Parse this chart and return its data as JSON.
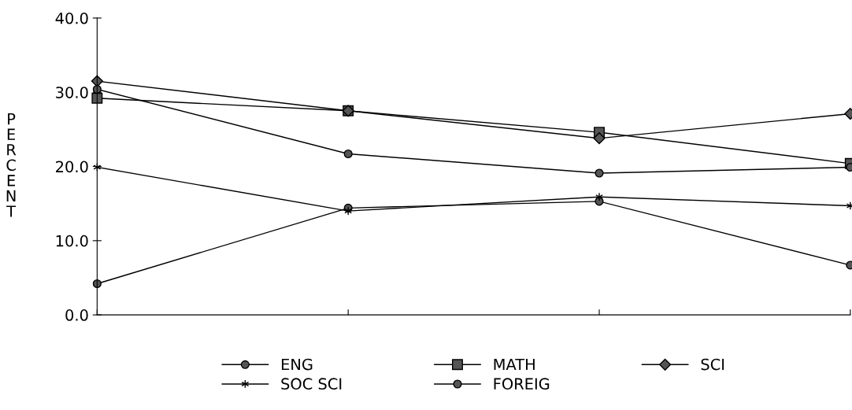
{
  "chart_data": {
    "type": "line",
    "ylabel": "PERCENT",
    "categories": [
      null,
      null,
      null,
      null
    ],
    "series": [
      {
        "name": "ENG",
        "color": "#000000",
        "marker": "circle",
        "values": [
          4.2,
          14.4,
          15.3,
          6.7
        ]
      },
      {
        "name": "MATH",
        "color": "#000000",
        "marker": "square",
        "values": [
          29.2,
          27.5,
          24.6,
          20.4
        ]
      },
      {
        "name": "SCI",
        "color": "#000000",
        "marker": "diamond",
        "values": [
          31.5,
          27.5,
          23.8,
          27.1
        ]
      },
      {
        "name": "SOC SCI",
        "color": "#000000",
        "marker": "cross",
        "values": [
          19.9,
          14.0,
          15.9,
          14.7
        ]
      },
      {
        "name": "FOREIG",
        "color": "#000000",
        "marker": "circle",
        "values": [
          30.4,
          21.7,
          19.1,
          19.9
        ]
      }
    ],
    "ylim": [
      0,
      40
    ],
    "yticks": [
      {
        "value": 0,
        "label": "0.0"
      },
      {
        "value": 10,
        "label": "10.0"
      },
      {
        "value": 20,
        "label": "20.0"
      },
      {
        "value": 30,
        "label": "30.0"
      },
      {
        "value": 40,
        "label": "40.0"
      }
    ],
    "tick_labels": "y",
    "grid": false,
    "legend": "bottom",
    "line_style": "solid"
  }
}
